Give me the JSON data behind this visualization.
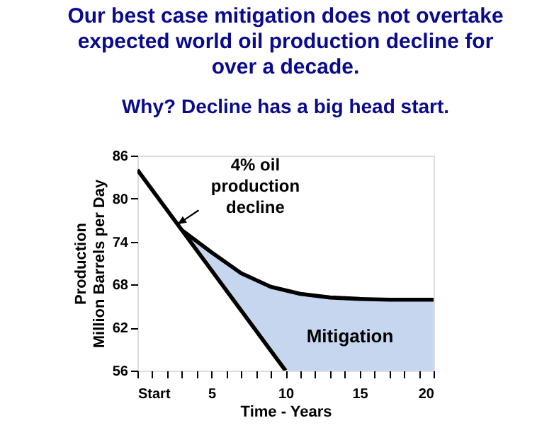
{
  "chart_data": {
    "type": "line",
    "title": "Our best case mitigation does not overtake\nexpected world oil production decline for\nover a decade.",
    "subtitle": "Why?  Decline has a big head start.",
    "xlabel": "Time - Years",
    "ylabel": "Production\nMillion Barrels per Day",
    "xlim": [
      0,
      20
    ],
    "ylim": [
      56,
      86
    ],
    "xticks": [
      {
        "value": 0,
        "label": "Start"
      },
      {
        "value": 1,
        "label": null
      },
      {
        "value": 2,
        "label": null
      },
      {
        "value": 3,
        "label": null
      },
      {
        "value": 4,
        "label": null
      },
      5,
      {
        "value": 6,
        "label": null
      },
      {
        "value": 7,
        "label": null
      },
      {
        "value": 8,
        "label": null
      },
      {
        "value": 9,
        "label": null
      },
      10,
      {
        "value": 11,
        "label": null
      },
      {
        "value": 12,
        "label": null
      },
      {
        "value": 13,
        "label": null
      },
      {
        "value": 14,
        "label": null
      },
      15,
      {
        "value": 16,
        "label": null
      },
      {
        "value": 17,
        "label": null
      },
      {
        "value": 18,
        "label": null
      },
      {
        "value": 19,
        "label": null
      },
      20
    ],
    "yticks": [
      56,
      62,
      68,
      74,
      80,
      86
    ],
    "grid": false,
    "marker": "none",
    "line_style": "solid",
    "annotations": [
      {
        "text": "4% oil\nproduction\ndecline",
        "x": 2.7,
        "y": 76.4
      },
      "Mitigation"
    ],
    "series": [
      {
        "color": "#000000",
        "x": [
          0,
          3,
          10
        ],
        "values": [
          84,
          75.6,
          56
        ]
      },
      {
        "color": "#000000",
        "x": [
          3,
          5,
          7,
          9,
          10,
          11,
          13,
          15,
          17,
          20
        ],
        "values": [
          75.6,
          72.5,
          69.6,
          67.7,
          67.2,
          66.7,
          66.2,
          66.0,
          65.9,
          65.9
        ],
        "lower": [
          75.6,
          70,
          64.4,
          58.8,
          56,
          56,
          56,
          56,
          56,
          56
        ],
        "upper": [
          75.6,
          72.5,
          69.6,
          67.7,
          67.2,
          66.7,
          66.2,
          66.0,
          65.9,
          65.9
        ]
      }
    ]
  }
}
